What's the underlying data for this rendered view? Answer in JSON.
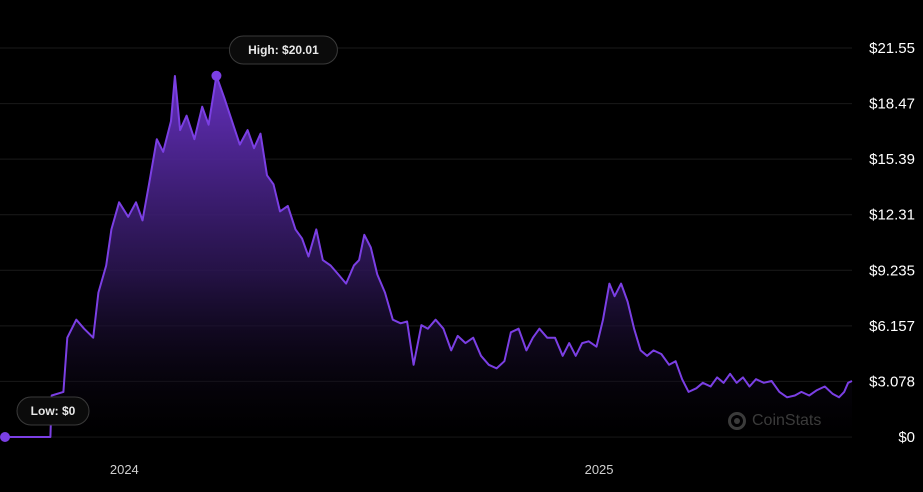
{
  "chart_data": {
    "type": "area",
    "y_axis_labels": [
      "$21.55",
      "$18.47",
      "$15.39",
      "$12.31",
      "$9.235",
      "$6.157",
      "$3.078",
      "$0"
    ],
    "ylim": [
      0,
      21.55
    ],
    "x_tick_labels": [
      "2024",
      "2025"
    ],
    "x_range": [
      "2023-10-01",
      "2025-07-15"
    ],
    "x_ticks": [
      "2024-01-01",
      "2025-01-01"
    ],
    "high_label": "High: $20.01",
    "low_label": "Low: $0",
    "high": {
      "date": "2024-03-12",
      "value": 20.01
    },
    "low": {
      "date": "2023-10-01",
      "value": 0
    },
    "line_color": "#7b3fe4",
    "fill_color": "#5a2bb0",
    "grid": true,
    "series": [
      {
        "points": [
          [
            "2023-10-01",
            0
          ],
          [
            "2023-11-05",
            0
          ],
          [
            "2023-11-06",
            2.3
          ],
          [
            "2023-11-15",
            2.5
          ],
          [
            "2023-11-18",
            5.5
          ],
          [
            "2023-11-25",
            6.5
          ],
          [
            "2023-12-01",
            6.0
          ],
          [
            "2023-12-08",
            5.5
          ],
          [
            "2023-12-12",
            8.0
          ],
          [
            "2023-12-18",
            9.5
          ],
          [
            "2023-12-22",
            11.5
          ],
          [
            "2023-12-28",
            13.0
          ],
          [
            "2024-01-04",
            12.2
          ],
          [
            "2024-01-10",
            13.0
          ],
          [
            "2024-01-15",
            12.0
          ],
          [
            "2024-01-20",
            14.0
          ],
          [
            "2024-01-26",
            16.5
          ],
          [
            "2024-01-31",
            15.8
          ],
          [
            "2024-02-06",
            17.5
          ],
          [
            "2024-02-09",
            20.0
          ],
          [
            "2024-02-13",
            17.0
          ],
          [
            "2024-02-18",
            17.8
          ],
          [
            "2024-02-24",
            16.5
          ],
          [
            "2024-03-01",
            18.3
          ],
          [
            "2024-03-06",
            17.3
          ],
          [
            "2024-03-12",
            20.01
          ],
          [
            "2024-03-18",
            18.8
          ],
          [
            "2024-03-24",
            17.5
          ],
          [
            "2024-03-30",
            16.2
          ],
          [
            "2024-04-05",
            17.0
          ],
          [
            "2024-04-10",
            16.0
          ],
          [
            "2024-04-15",
            16.8
          ],
          [
            "2024-04-20",
            14.5
          ],
          [
            "2024-04-25",
            14.0
          ],
          [
            "2024-04-30",
            12.5
          ],
          [
            "2024-05-06",
            12.8
          ],
          [
            "2024-05-12",
            11.5
          ],
          [
            "2024-05-17",
            11.0
          ],
          [
            "2024-05-22",
            10.0
          ],
          [
            "2024-05-28",
            11.5
          ],
          [
            "2024-06-02",
            9.8
          ],
          [
            "2024-06-08",
            9.5
          ],
          [
            "2024-06-14",
            9.0
          ],
          [
            "2024-06-20",
            8.5
          ],
          [
            "2024-06-26",
            9.5
          ],
          [
            "2024-06-30",
            9.8
          ],
          [
            "2024-07-04",
            11.2
          ],
          [
            "2024-07-09",
            10.5
          ],
          [
            "2024-07-14",
            9.0
          ],
          [
            "2024-07-20",
            8.0
          ],
          [
            "2024-07-26",
            6.5
          ],
          [
            "2024-08-01",
            6.3
          ],
          [
            "2024-08-06",
            6.4
          ],
          [
            "2024-08-11",
            4.0
          ],
          [
            "2024-08-17",
            6.2
          ],
          [
            "2024-08-22",
            6.0
          ],
          [
            "2024-08-28",
            6.5
          ],
          [
            "2024-09-03",
            6.0
          ],
          [
            "2024-09-09",
            4.8
          ],
          [
            "2024-09-14",
            5.6
          ],
          [
            "2024-09-20",
            5.2
          ],
          [
            "2024-09-26",
            5.5
          ],
          [
            "2024-10-02",
            4.5
          ],
          [
            "2024-10-08",
            4.0
          ],
          [
            "2024-10-14",
            3.8
          ],
          [
            "2024-10-20",
            4.2
          ],
          [
            "2024-10-25",
            5.8
          ],
          [
            "2024-10-31",
            6.0
          ],
          [
            "2024-11-06",
            4.8
          ],
          [
            "2024-11-11",
            5.5
          ],
          [
            "2024-11-16",
            6.0
          ],
          [
            "2024-11-22",
            5.5
          ],
          [
            "2024-11-28",
            5.5
          ],
          [
            "2024-12-04",
            4.5
          ],
          [
            "2024-12-09",
            5.2
          ],
          [
            "2024-12-14",
            4.5
          ],
          [
            "2024-12-19",
            5.2
          ],
          [
            "2024-12-24",
            5.3
          ],
          [
            "2024-12-30",
            5.0
          ],
          [
            "2025-01-04",
            6.5
          ],
          [
            "2025-01-09",
            8.5
          ],
          [
            "2025-01-13",
            7.8
          ],
          [
            "2025-01-18",
            8.5
          ],
          [
            "2025-01-23",
            7.5
          ],
          [
            "2025-01-28",
            6.0
          ],
          [
            "2025-02-02",
            4.8
          ],
          [
            "2025-02-07",
            4.5
          ],
          [
            "2025-02-12",
            4.8
          ],
          [
            "2025-02-18",
            4.6
          ],
          [
            "2025-02-24",
            4.0
          ],
          [
            "2025-03-01",
            4.2
          ],
          [
            "2025-03-06",
            3.2
          ],
          [
            "2025-03-11",
            2.5
          ],
          [
            "2025-03-17",
            2.7
          ],
          [
            "2025-03-22",
            3.0
          ],
          [
            "2025-03-28",
            2.8
          ],
          [
            "2025-04-02",
            3.3
          ],
          [
            "2025-04-07",
            3.0
          ],
          [
            "2025-04-12",
            3.5
          ],
          [
            "2025-04-17",
            3.0
          ],
          [
            "2025-04-22",
            3.3
          ],
          [
            "2025-04-27",
            2.8
          ],
          [
            "2025-05-02",
            3.2
          ],
          [
            "2025-05-08",
            3.0
          ],
          [
            "2025-05-14",
            3.1
          ],
          [
            "2025-05-20",
            2.5
          ],
          [
            "2025-05-26",
            2.2
          ],
          [
            "2025-06-01",
            2.3
          ],
          [
            "2025-06-06",
            2.5
          ],
          [
            "2025-06-12",
            2.3
          ],
          [
            "2025-06-18",
            2.6
          ],
          [
            "2025-06-24",
            2.8
          ],
          [
            "2025-06-30",
            2.4
          ],
          [
            "2025-07-05",
            2.2
          ],
          [
            "2025-07-09",
            2.5
          ],
          [
            "2025-07-12",
            3.0
          ],
          [
            "2025-07-15",
            3.1
          ]
        ]
      }
    ]
  },
  "watermark": "CoinStats"
}
